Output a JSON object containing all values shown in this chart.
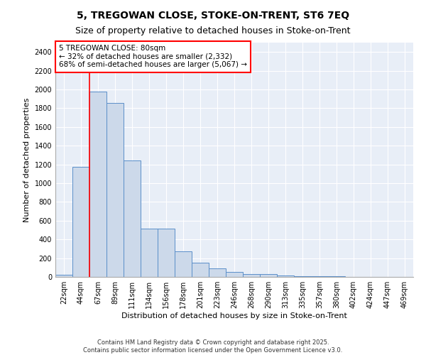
{
  "title_line1": "5, TREGOWAN CLOSE, STOKE-ON-TRENT, ST6 7EQ",
  "title_line2": "Size of property relative to detached houses in Stoke-on-Trent",
  "xlabel": "Distribution of detached houses by size in Stoke-on-Trent",
  "ylabel": "Number of detached properties",
  "categories": [
    "22sqm",
    "44sqm",
    "67sqm",
    "89sqm",
    "111sqm",
    "134sqm",
    "156sqm",
    "178sqm",
    "201sqm",
    "223sqm",
    "246sqm",
    "268sqm",
    "290sqm",
    "313sqm",
    "335sqm",
    "357sqm",
    "380sqm",
    "402sqm",
    "424sqm",
    "447sqm",
    "469sqm"
  ],
  "values": [
    25,
    1175,
    1980,
    1855,
    1245,
    515,
    515,
    270,
    155,
    88,
    50,
    33,
    30,
    12,
    8,
    5,
    4,
    3,
    2,
    2,
    2
  ],
  "bar_color": "#ccd9ea",
  "bar_edge_color": "#5b8fc9",
  "vline_color": "red",
  "vline_x_index": 2,
  "annotation_text": "5 TREGOWAN CLOSE: 80sqm\n← 32% of detached houses are smaller (2,332)\n68% of semi-detached houses are larger (5,067) →",
  "ylim": [
    0,
    2500
  ],
  "yticks": [
    0,
    200,
    400,
    600,
    800,
    1000,
    1200,
    1400,
    1600,
    1800,
    2000,
    2200,
    2400
  ],
  "plot_background": "#e8eef7",
  "footer_line1": "Contains HM Land Registry data © Crown copyright and database right 2025.",
  "footer_line2": "Contains public sector information licensed under the Open Government Licence v3.0.",
  "title_fontsize": 10,
  "subtitle_fontsize": 9,
  "tick_fontsize": 7,
  "ylabel_fontsize": 8,
  "xlabel_fontsize": 8,
  "annotation_fontsize": 7.5,
  "footer_fontsize": 6
}
